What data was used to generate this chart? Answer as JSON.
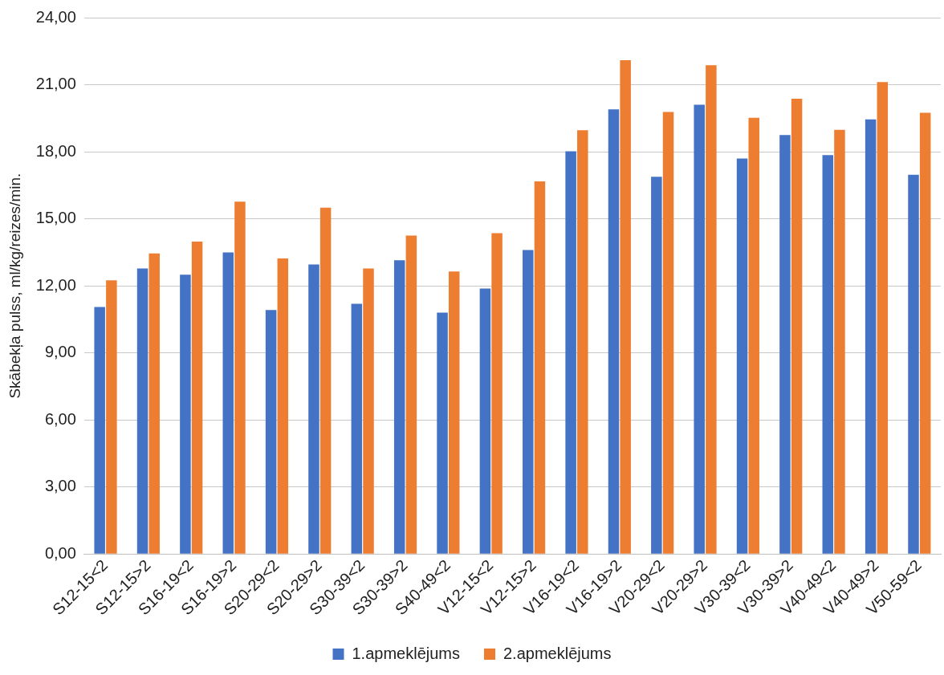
{
  "chart_data": {
    "type": "bar",
    "ylabel": "Skābekļa pulss, ml/kg/reizes/min.",
    "categories": [
      "S12-15<2",
      "S12-15>2",
      "S16-19<2",
      "S16-19>2",
      "S20-29<2",
      "S20-29>2",
      "S30-39<2",
      "S30-39>2",
      "S40-49<2",
      "V12-15<2",
      "V12-15>2",
      "V16-19<2",
      "V16-19>2",
      "V20-29<2",
      "V20-29>2",
      "V30-39<2",
      "V30-39>2",
      "V40-49<2",
      "V40-49>2",
      "V50-59<2"
    ],
    "series": [
      {
        "name": "1.apmeklējums",
        "color": "#4472c4",
        "values": [
          11.05,
          12.78,
          12.5,
          13.5,
          10.92,
          12.96,
          11.2,
          13.15,
          10.8,
          11.88,
          13.6,
          18.02,
          19.9,
          16.88,
          20.1,
          17.7,
          18.75,
          17.85,
          19.45,
          16.97
        ]
      },
      {
        "name": "2.apmeklējums",
        "color": "#ed7d31",
        "values": [
          12.25,
          13.45,
          13.98,
          15.77,
          13.23,
          15.5,
          12.78,
          14.25,
          12.64,
          14.36,
          16.67,
          18.96,
          22.1,
          19.78,
          21.87,
          19.52,
          20.37,
          18.98,
          21.12,
          19.74
        ]
      }
    ],
    "ylim": [
      0,
      24
    ],
    "yticks": [
      {
        "value": 0,
        "label": "0,00"
      },
      {
        "value": 3,
        "label": "3,00"
      },
      {
        "value": 6,
        "label": "6,00"
      },
      {
        "value": 9,
        "label": "9,00"
      },
      {
        "value": 12,
        "label": "12,00"
      },
      {
        "value": 15,
        "label": "15,00"
      },
      {
        "value": 18,
        "label": "18,00"
      },
      {
        "value": 21,
        "label": "21,00"
      },
      {
        "value": 24,
        "label": "24,00"
      }
    ],
    "grid": "y",
    "legend": "bottom"
  }
}
